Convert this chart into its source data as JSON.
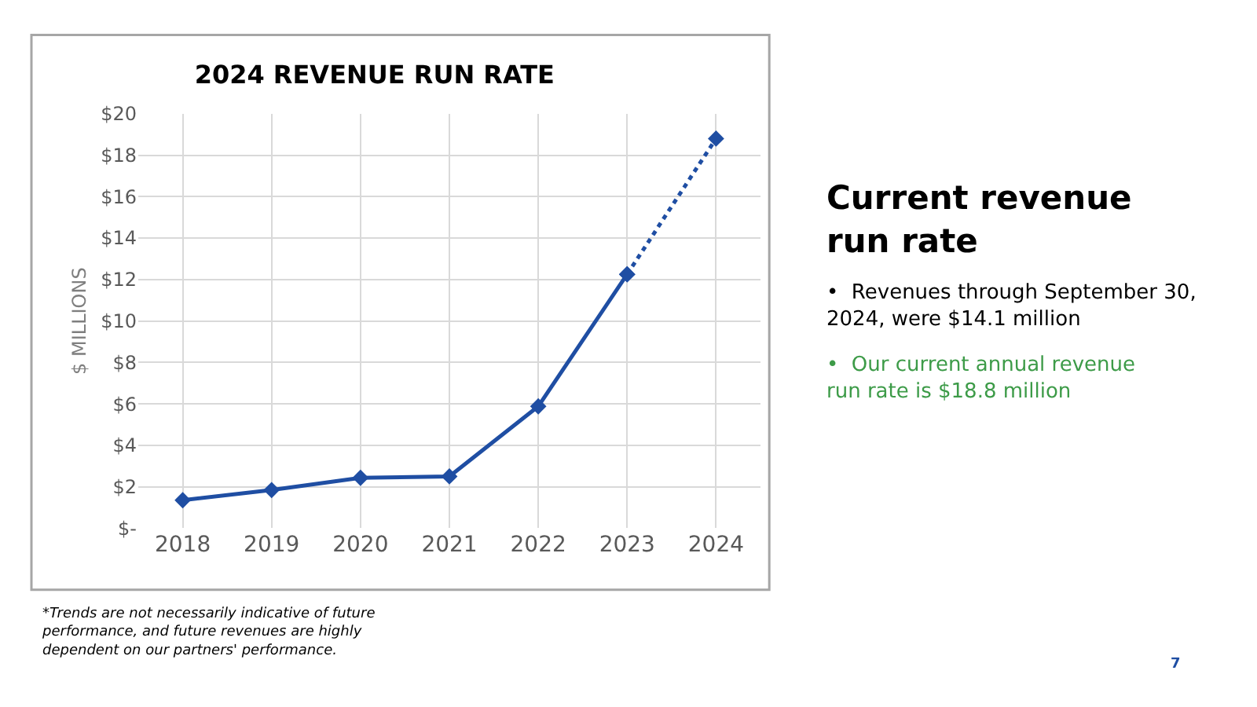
{
  "chart_data": {
    "type": "line",
    "title": "2024 REVENUE RUN RATE",
    "ylabel": "$ MILLIONS",
    "categories": [
      "2018",
      "2019",
      "2020",
      "2021",
      "2022",
      "2023",
      "2024"
    ],
    "series": [
      {
        "color": "#1f4ea3",
        "values": [
          1.35,
          1.84,
          2.43,
          2.5,
          5.88,
          12.25,
          null
        ],
        "marker": "diamond",
        "line_style": "solid"
      },
      {
        "color": "#1f4ea3",
        "values": [
          null,
          null,
          null,
          null,
          null,
          12.25,
          18.8
        ],
        "marker": "diamond",
        "line_style": "dotted"
      }
    ],
    "ylim": [
      0,
      20
    ],
    "yticks": [
      {
        "value": 0,
        "label": "$-"
      },
      {
        "value": 2,
        "label": "$2"
      },
      {
        "value": 4,
        "label": "$4"
      },
      {
        "value": 6,
        "label": "$6"
      },
      {
        "value": 8,
        "label": "$8"
      },
      {
        "value": 10,
        "label": "$10"
      },
      {
        "value": 12,
        "label": "$12"
      },
      {
        "value": 14,
        "label": "$14"
      },
      {
        "value": 16,
        "label": "$16"
      },
      {
        "value": 18,
        "label": "$18"
      },
      {
        "value": 20,
        "label": "$20"
      }
    ],
    "grid": true,
    "annotations": [
      "Current revenue run rate",
      "•  Revenues through September 30, 2024, were $14.1 million",
      "•  Our current annual revenue run rate is $18.8 million",
      "*Trends are not necessarily indicative of future performance, and future revenues are highly dependent on our partners' performance.",
      "7"
    ]
  }
}
